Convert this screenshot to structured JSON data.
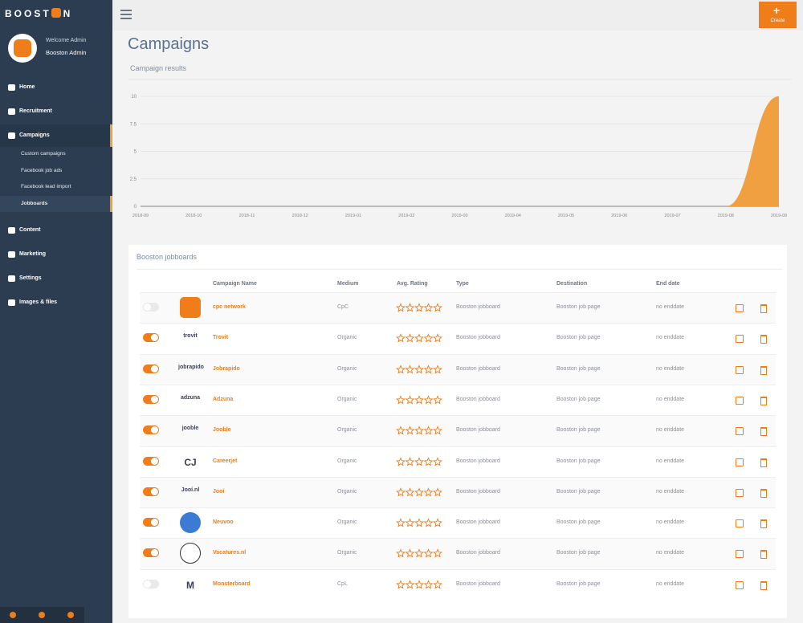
{
  "sidebar": {
    "brand_left": "BOOST",
    "brand_right": "N",
    "welcome": "Welcome Admin",
    "user": "Booston Admin",
    "menu": [
      {
        "label": "Home"
      },
      {
        "label": "Recruitment"
      },
      {
        "label": "Campaigns",
        "active": true,
        "children": [
          {
            "label": "Custom campaigns"
          },
          {
            "label": "Facebook job ads"
          },
          {
            "label": "Facebook lead import"
          },
          {
            "label": "Jobboards",
            "active": true
          }
        ]
      },
      {
        "label": "Content"
      },
      {
        "label": "Marketing"
      },
      {
        "label": "Settings"
      },
      {
        "label": "Images & files"
      }
    ]
  },
  "topbar": {
    "create": "Create"
  },
  "page_title": "Campaigns",
  "chart_data": {
    "type": "area",
    "title": "Campaign results",
    "color": "#f0a040",
    "grid": true,
    "categories": [
      "2018-09",
      "2018-10",
      "2018-11",
      "2018-12",
      "2019-01",
      "2019-02",
      "2019-03",
      "2019-04",
      "2019-05",
      "2019-06",
      "2019-07",
      "2019-08",
      "2019-09"
    ],
    "values": [
      0,
      0,
      0,
      0,
      0,
      0,
      0,
      0,
      0,
      0,
      0,
      0,
      10
    ],
    "ylim": [
      0,
      10
    ],
    "yticks": [
      0,
      2.5,
      5,
      7.5,
      10
    ]
  },
  "table": {
    "title": "Booston jobboards",
    "columns": [
      "Campaign Name",
      "Medium",
      "Avg. Rating",
      "Type",
      "Destination",
      "End date"
    ],
    "rows": [
      {
        "enabled": false,
        "name": "cpc network",
        "medium": "CpC",
        "rating": 0,
        "type": "Booston jobboard",
        "destination": "Booston job page",
        "end_date": "no enddate"
      },
      {
        "enabled": true,
        "logo": "trovit",
        "name": "Trovit",
        "medium": "Organic",
        "rating": 0,
        "type": "Booston jobboard",
        "destination": "Booston job page",
        "end_date": "no enddate"
      },
      {
        "enabled": true,
        "logo": "jobrapido",
        "name": "Jobrapido",
        "medium": "Organic",
        "rating": 0,
        "type": "Booston jobboard",
        "destination": "Booston job page",
        "end_date": "no enddate"
      },
      {
        "enabled": true,
        "logo": "adzuna",
        "name": "Adzuna",
        "medium": "Organic",
        "rating": 0,
        "type": "Booston jobboard",
        "destination": "Booston job page",
        "end_date": "no enddate"
      },
      {
        "enabled": true,
        "logo": "jooble",
        "name": "Jooble",
        "medium": "Organic",
        "rating": 0,
        "type": "Booston jobboard",
        "destination": "Booston job page",
        "end_date": "no enddate"
      },
      {
        "enabled": true,
        "logo": "CJ",
        "name": "Careerjet",
        "medium": "Organic",
        "rating": 0,
        "type": "Booston jobboard",
        "destination": "Booston job page",
        "end_date": "no enddate"
      },
      {
        "enabled": true,
        "logo": "Jooí.nl",
        "name": "Jooí",
        "medium": "Organic",
        "rating": 0,
        "type": "Booston jobboard",
        "destination": "Booston job page",
        "end_date": "no enddate"
      },
      {
        "enabled": true,
        "name": "Neuvoo",
        "medium": "Organic",
        "rating": 0,
        "type": "Booston jobboard",
        "destination": "Booston job page",
        "end_date": "no enddate"
      },
      {
        "enabled": true,
        "name": "Vacatures.nl",
        "medium": "Organic",
        "rating": 0,
        "type": "Booston jobboard",
        "destination": "Booston job page",
        "end_date": "no enddate"
      },
      {
        "enabled": false,
        "logo": "M",
        "name": "Monsterboard",
        "medium": "CpL",
        "rating": 0,
        "type": "Booston jobboard",
        "destination": "Booston job page",
        "end_date": "no enddate"
      }
    ]
  }
}
